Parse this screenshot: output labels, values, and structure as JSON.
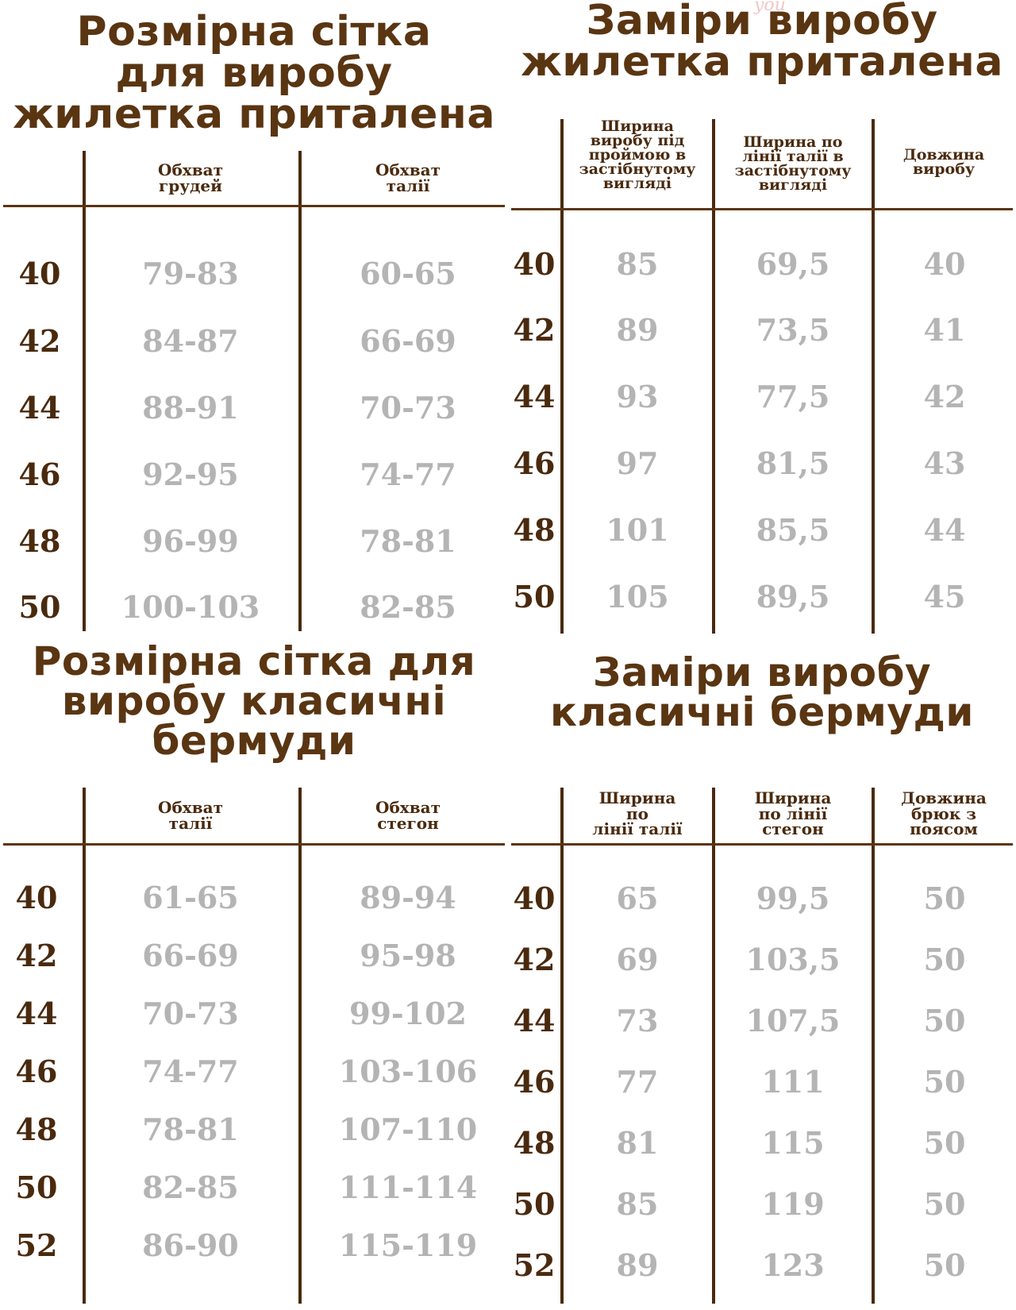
{
  "watermark": "you",
  "panels": {
    "vest_size": {
      "title": [
        "Розмірна сітка",
        "для виробу",
        "жилетка приталена"
      ],
      "headers": [
        [
          "Обхват",
          "грудей"
        ],
        [
          "Обхват",
          "талії"
        ]
      ],
      "rows": [
        {
          "size": "40",
          "values": [
            "79-83",
            "60-65"
          ]
        },
        {
          "size": "42",
          "values": [
            "84-87",
            "66-69"
          ]
        },
        {
          "size": "44",
          "values": [
            "88-91",
            "70-73"
          ]
        },
        {
          "size": "46",
          "values": [
            "92-95",
            "74-77"
          ]
        },
        {
          "size": "48",
          "values": [
            "96-99",
            "78-81"
          ]
        },
        {
          "size": "50",
          "values": [
            "100-103",
            "82-85"
          ]
        }
      ]
    },
    "vest_measure": {
      "title": [
        "Заміри виробу",
        "жилетка приталена"
      ],
      "headers": [
        [
          "Ширина",
          "виробу під",
          "проймою в",
          "застібнутому",
          "вигляді"
        ],
        [
          "Ширина по",
          "лінії талії в",
          "застібнутому",
          "вигляді"
        ],
        [
          "Довжина",
          "виробу"
        ]
      ],
      "rows": [
        {
          "size": "40",
          "values": [
            "85",
            "69,5",
            "40"
          ]
        },
        {
          "size": "42",
          "values": [
            "89",
            "73,5",
            "41"
          ]
        },
        {
          "size": "44",
          "values": [
            "93",
            "77,5",
            "42"
          ]
        },
        {
          "size": "46",
          "values": [
            "97",
            "81,5",
            "43"
          ]
        },
        {
          "size": "48",
          "values": [
            "101",
            "85,5",
            "44"
          ]
        },
        {
          "size": "50",
          "values": [
            "105",
            "89,5",
            "45"
          ]
        }
      ]
    },
    "bermuda_size": {
      "title": [
        "Розмірна сітка для",
        "виробу класичні",
        "бермуди"
      ],
      "headers": [
        [
          "Обхват",
          "талії"
        ],
        [
          "Обхват",
          "стегон"
        ]
      ],
      "rows": [
        {
          "size": "40",
          "values": [
            "61-65",
            "89-94"
          ]
        },
        {
          "size": "42",
          "values": [
            "66-69",
            "95-98"
          ]
        },
        {
          "size": "44",
          "values": [
            "70-73",
            "99-102"
          ]
        },
        {
          "size": "46",
          "values": [
            "74-77",
            "103-106"
          ]
        },
        {
          "size": "48",
          "values": [
            "78-81",
            "107-110"
          ]
        },
        {
          "size": "50",
          "values": [
            "82-85",
            "111-114"
          ]
        },
        {
          "size": "52",
          "values": [
            "86-90",
            "115-119"
          ]
        }
      ]
    },
    "bermuda_measure": {
      "title": [
        "Заміри виробу",
        "класичні бермуди"
      ],
      "headers": [
        [
          "Ширина",
          "по",
          "лінії талії"
        ],
        [
          "Ширина",
          "по лінії",
          "стегон"
        ],
        [
          "Довжина",
          "брюк з",
          "поясом"
        ]
      ],
      "rows": [
        {
          "size": "40",
          "values": [
            "65",
            "99,5",
            "50"
          ]
        },
        {
          "size": "42",
          "values": [
            "69",
            "103,5",
            "50"
          ]
        },
        {
          "size": "44",
          "values": [
            "73",
            "107,5",
            "50"
          ]
        },
        {
          "size": "46",
          "values": [
            "77",
            "111",
            "50"
          ]
        },
        {
          "size": "48",
          "values": [
            "81",
            "115",
            "50"
          ]
        },
        {
          "size": "50",
          "values": [
            "85",
            "119",
            "50"
          ]
        },
        {
          "size": "52",
          "values": [
            "89",
            "123",
            "50"
          ]
        }
      ]
    }
  }
}
